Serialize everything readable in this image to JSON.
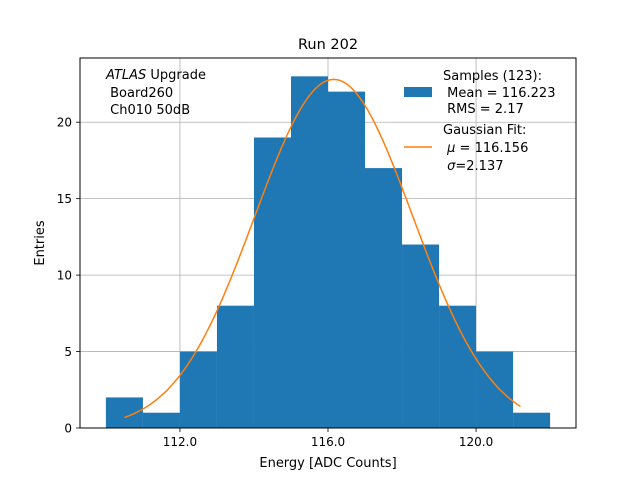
{
  "chart_data": {
    "type": "bar",
    "title": "Run 202",
    "xlabel": "Energy [ADC Counts]",
    "ylabel": "Entries",
    "xlim": [
      109.3,
      122.7
    ],
    "ylim": [
      0,
      24.2
    ],
    "grid": true,
    "xticks": [
      {
        "value": 112,
        "label": "112.0"
      },
      {
        "value": 116,
        "label": "116.0"
      },
      {
        "value": 120,
        "label": "120.0"
      }
    ],
    "yticks": [
      {
        "value": 0,
        "label": "0"
      },
      {
        "value": 5,
        "label": "5"
      },
      {
        "value": 10,
        "label": "10"
      },
      {
        "value": 15,
        "label": "15"
      },
      {
        "value": 20,
        "label": "20"
      }
    ],
    "histogram": {
      "bin_edges": [
        110.0,
        111.0,
        112.0,
        113.0,
        114.0,
        115.0,
        116.0,
        117.0,
        118.0,
        119.0,
        120.0,
        121.0,
        122.0
      ],
      "counts": [
        2,
        1,
        5,
        8,
        19,
        23,
        22,
        17,
        12,
        8,
        5,
        1
      ],
      "color": "#1f77b4"
    },
    "fit": {
      "type": "gaussian",
      "mu": 116.156,
      "sigma": 2.137,
      "amplitude": 22.8,
      "x_range": [
        110.5,
        121.2
      ],
      "color": "#ff7f0e"
    },
    "annotation": {
      "italic": "ATLAS",
      "rest": " Upgrade",
      "line2": " Board260",
      "line3": " Ch010 50dB"
    },
    "legend": {
      "placement": "top-right",
      "samples": {
        "line1": "Samples (123):",
        "line2": " Mean = 116.223",
        "line3": " RMS = 2.17"
      },
      "fit": {
        "line1": "Gaussian Fit:",
        "mu_symbol": "μ",
        "mu_text": " = 116.156",
        "sigma_symbol": "σ",
        "sigma_text": "=2.137"
      }
    }
  }
}
